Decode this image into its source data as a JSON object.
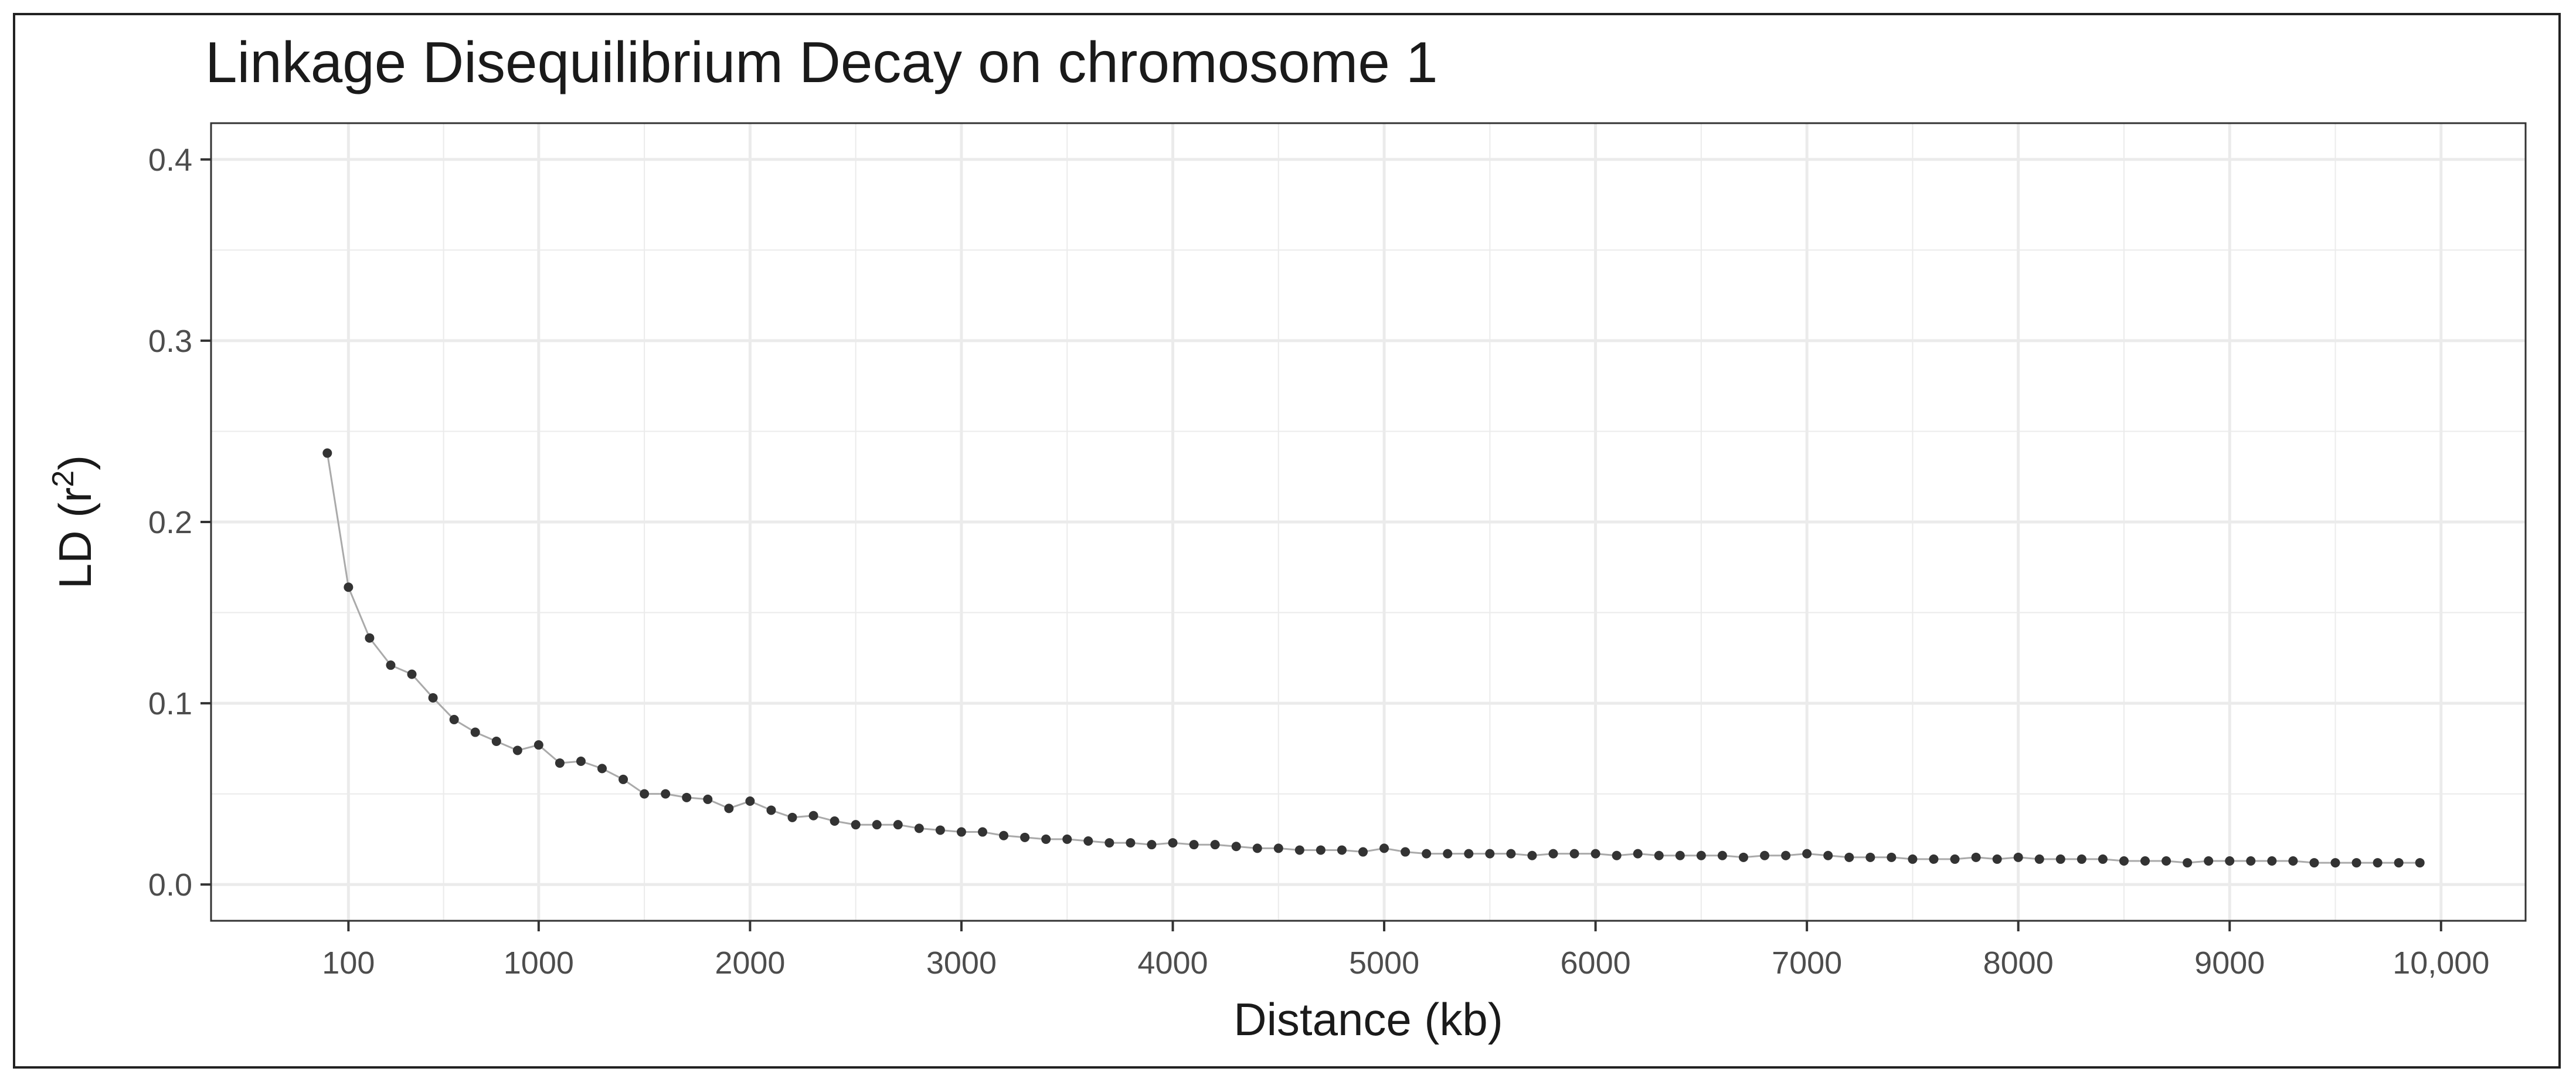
{
  "chart_data": {
    "type": "line",
    "title": "Linkage Disequilibrium Decay on chromosome 1",
    "xlabel": "Distance (kb)",
    "ylabel_main": "LD (r",
    "ylabel_sup": "2",
    "ylabel_close": ")",
    "xlim": [
      -550,
      10400
    ],
    "ylim": [
      -0.02,
      0.42
    ],
    "xticks": [
      100,
      1000,
      2000,
      3000,
      4000,
      5000,
      6000,
      7000,
      8000,
      9000,
      10000
    ],
    "xtick_labels": [
      "100",
      "1000",
      "2000",
      "3000",
      "4000",
      "5000",
      "6000",
      "7000",
      "8000",
      "9000",
      "10,000"
    ],
    "yticks": [
      0.0,
      0.1,
      0.2,
      0.3,
      0.4
    ],
    "ytick_labels": [
      "0.0",
      "0.1",
      "0.2",
      "0.3",
      "0.4"
    ],
    "grid": true,
    "theme": "bw",
    "colors": {
      "line": "#aaaaaa",
      "point": "#333333",
      "grid": "#ebebeb",
      "border": "#333333"
    },
    "x": [
      0,
      100,
      200,
      300,
      400,
      500,
      600,
      700,
      800,
      900,
      1000,
      1100,
      1200,
      1300,
      1400,
      1500,
      1600,
      1700,
      1800,
      1900,
      2000,
      2100,
      2200,
      2300,
      2400,
      2500,
      2600,
      2700,
      2800,
      2900,
      3000,
      3100,
      3200,
      3300,
      3400,
      3500,
      3600,
      3700,
      3800,
      3900,
      4000,
      4100,
      4200,
      4300,
      4400,
      4500,
      4600,
      4700,
      4800,
      4900,
      5000,
      5100,
      5200,
      5300,
      5400,
      5500,
      5600,
      5700,
      5800,
      5900,
      6000,
      6100,
      6200,
      6300,
      6400,
      6500,
      6600,
      6700,
      6800,
      6900,
      7000,
      7100,
      7200,
      7300,
      7400,
      7500,
      7600,
      7700,
      7800,
      7900,
      8000,
      8100,
      8200,
      8300,
      8400,
      8500,
      8600,
      8700,
      8800,
      8900,
      9000,
      9100,
      9200,
      9300,
      9400,
      9500,
      9600,
      9700,
      9800,
      9900
    ],
    "y": [
      0.238,
      0.164,
      0.136,
      0.121,
      0.116,
      0.103,
      0.091,
      0.084,
      0.079,
      0.074,
      0.077,
      0.067,
      0.068,
      0.064,
      0.058,
      0.05,
      0.05,
      0.048,
      0.047,
      0.042,
      0.046,
      0.041,
      0.037,
      0.038,
      0.035,
      0.033,
      0.033,
      0.033,
      0.031,
      0.03,
      0.029,
      0.029,
      0.027,
      0.026,
      0.025,
      0.025,
      0.024,
      0.023,
      0.023,
      0.022,
      0.023,
      0.022,
      0.022,
      0.021,
      0.02,
      0.02,
      0.019,
      0.019,
      0.019,
      0.018,
      0.02,
      0.018,
      0.017,
      0.017,
      0.017,
      0.017,
      0.017,
      0.016,
      0.017,
      0.017,
      0.017,
      0.016,
      0.017,
      0.016,
      0.016,
      0.016,
      0.016,
      0.015,
      0.016,
      0.016,
      0.017,
      0.016,
      0.015,
      0.015,
      0.015,
      0.014,
      0.014,
      0.014,
      0.015,
      0.014,
      0.015,
      0.014,
      0.014,
      0.014,
      0.014,
      0.013,
      0.013,
      0.013,
      0.012,
      0.013,
      0.013,
      0.013,
      0.013,
      0.013,
      0.012,
      0.012,
      0.012,
      0.012,
      0.012,
      0.012
    ]
  }
}
